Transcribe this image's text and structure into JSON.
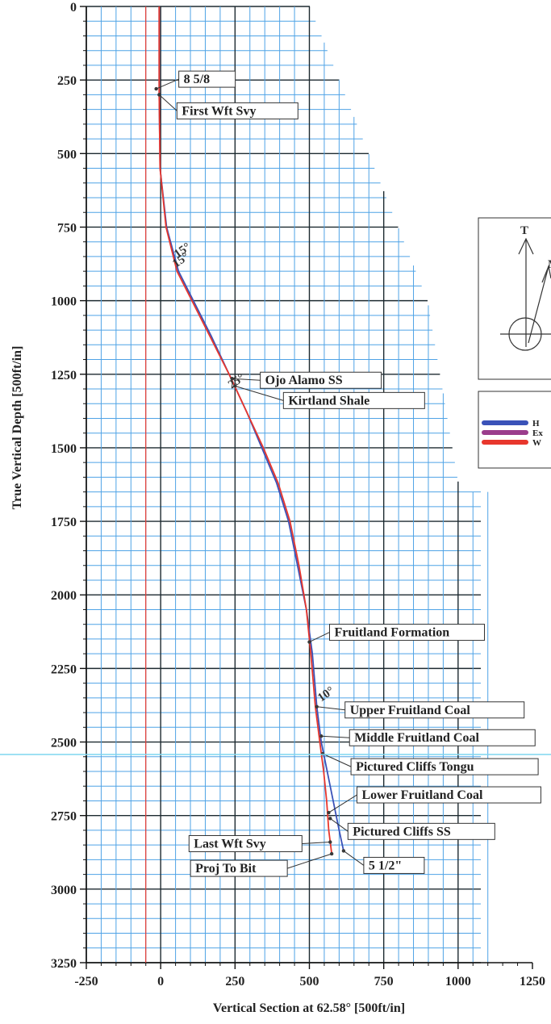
{
  "chart_data": {
    "type": "line",
    "xlabel": "Vertical Section at 62.58° [500ft/in]",
    "ylabel": "True Vertical Depth [500ft/in]",
    "xlim": [
      -250,
      1250
    ],
    "ylim": [
      3250,
      0
    ],
    "x_ticks": [
      "-250",
      "0",
      "250",
      "500",
      "750",
      "1000",
      "1250"
    ],
    "y_ticks": [
      "0",
      "250",
      "500",
      "750",
      "1000",
      "1250",
      "1500",
      "1750",
      "2000",
      "2250",
      "2500",
      "2750",
      "3000",
      "3250"
    ],
    "grid": true,
    "series": [
      {
        "color": "#3a52b8",
        "x": [
          -5,
          -5,
          -2,
          20,
          60,
          110,
          170,
          230,
          290,
          340,
          390,
          430,
          460,
          490,
          510,
          525,
          540,
          560,
          580,
          600,
          615
        ],
        "y": [
          0,
          300,
          550,
          750,
          900,
          1000,
          1120,
          1250,
          1380,
          1500,
          1620,
          1750,
          1900,
          2050,
          2200,
          2380,
          2500,
          2600,
          2700,
          2800,
          2870
        ]
      },
      {
        "color": "#e8372d",
        "x": [
          -5,
          -5,
          -2,
          18,
          55,
          105,
          165,
          230,
          290,
          345,
          395,
          435,
          465,
          490,
          505,
          520,
          535,
          548,
          558,
          565,
          575
        ],
        "y": [
          0,
          300,
          550,
          750,
          900,
          1000,
          1120,
          1250,
          1380,
          1500,
          1620,
          1750,
          1900,
          2050,
          2200,
          2380,
          2500,
          2600,
          2700,
          2800,
          2880
        ]
      },
      {
        "color": "#e8372d",
        "x": [
          -50,
          -50
        ],
        "y": [
          0,
          3250
        ]
      }
    ],
    "annotations": [
      {
        "text": "8 5/8",
        "x": -15,
        "y": 280
      },
      {
        "text": "First Wft Svy",
        "x": -5,
        "y": 300
      },
      {
        "text": "Ojo Alamo SS",
        "x": 240,
        "y": 1265
      },
      {
        "text": "Kirtland Shale",
        "x": 250,
        "y": 1290
      },
      {
        "text": "Fruitland Formation",
        "x": 500,
        "y": 2160
      },
      {
        "text": "Upper Fruitland Coal",
        "x": 525,
        "y": 2380
      },
      {
        "text": "Middle Fruitland Coal",
        "x": 540,
        "y": 2480
      },
      {
        "text": "Pictured Cliffs Tongu",
        "x": 545,
        "y": 2540
      },
      {
        "text": "Lower Fruitland Coal",
        "x": 565,
        "y": 2740
      },
      {
        "text": "Pictured Cliffs SS",
        "x": 570,
        "y": 2760
      },
      {
        "text": "Last Wft Svy",
        "x": 570,
        "y": 2840
      },
      {
        "text": "5 1/2\"",
        "x": 615,
        "y": 2870
      },
      {
        "text": "Proj To Bit",
        "x": 575,
        "y": 2880
      }
    ],
    "angle_labels": [
      "15°",
      "15°",
      "25°",
      "10°"
    ],
    "legend": {
      "placement": "right",
      "entries": [
        "H",
        "Ex",
        "W"
      ],
      "colors": [
        "#3a52b8",
        "#9b3d8c",
        "#e8372d"
      ]
    },
    "north_arrow": {
      "labels": [
        "T",
        "M"
      ]
    }
  }
}
